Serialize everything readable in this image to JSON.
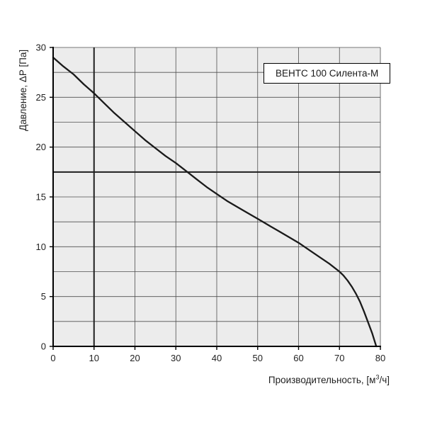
{
  "chart_data": {
    "type": "line",
    "title": "ВЕНТС 100 Силента-М",
    "ylabel": "Давление, ΔP [Па]",
    "xlabel_main": "Производительность, [м",
    "xlabel_sup": "3",
    "xlabel_end": "/ч]",
    "xlim": [
      0,
      80
    ],
    "ylim": [
      0,
      30
    ],
    "x_ticks": [
      0,
      10,
      20,
      30,
      40,
      50,
      60,
      70,
      80
    ],
    "y_ticks": [
      0,
      5,
      10,
      15,
      20,
      25,
      30
    ],
    "x_grid_step": 10,
    "y_grid_step": 2.5,
    "emphasis_gridlines": {
      "x": [
        10
      ],
      "y": [
        17.5
      ]
    },
    "grid": "on",
    "legend_position": "none",
    "series": [
      {
        "name": "ВЕНТС 100 Силента-М",
        "points": [
          [
            0,
            29
          ],
          [
            2.5,
            28.1
          ],
          [
            5,
            27.3
          ],
          [
            7.5,
            26.3
          ],
          [
            10,
            25.4
          ],
          [
            12.5,
            24.4
          ],
          [
            15,
            23.4
          ],
          [
            17.5,
            22.5
          ],
          [
            20,
            21.6
          ],
          [
            22.5,
            20.7
          ],
          [
            25,
            19.9
          ],
          [
            27.5,
            19.1
          ],
          [
            30,
            18.4
          ],
          [
            32.5,
            17.6
          ],
          [
            35,
            16.8
          ],
          [
            37.5,
            16.0
          ],
          [
            40,
            15.3
          ],
          [
            42.5,
            14.6
          ],
          [
            45,
            14.0
          ],
          [
            47.5,
            13.4
          ],
          [
            50,
            12.8
          ],
          [
            52.5,
            12.2
          ],
          [
            55,
            11.6
          ],
          [
            57.5,
            11.0
          ],
          [
            60,
            10.4
          ],
          [
            62.5,
            9.7
          ],
          [
            65,
            9.0
          ],
          [
            67.5,
            8.3
          ],
          [
            70,
            7.5
          ],
          [
            71,
            7.1
          ],
          [
            72,
            6.6
          ],
          [
            73,
            6.0
          ],
          [
            74,
            5.3
          ],
          [
            75,
            4.5
          ],
          [
            76,
            3.5
          ],
          [
            77,
            2.4
          ],
          [
            78,
            1.3
          ],
          [
            79,
            0
          ]
        ]
      }
    ],
    "colors": {
      "curve": "#1a1a1a",
      "grid": "#4f4f4f",
      "grid_emphasis": "#1f1f1f",
      "plot_bg": "#ececec",
      "axis": "#000000",
      "text": "#222222"
    }
  }
}
